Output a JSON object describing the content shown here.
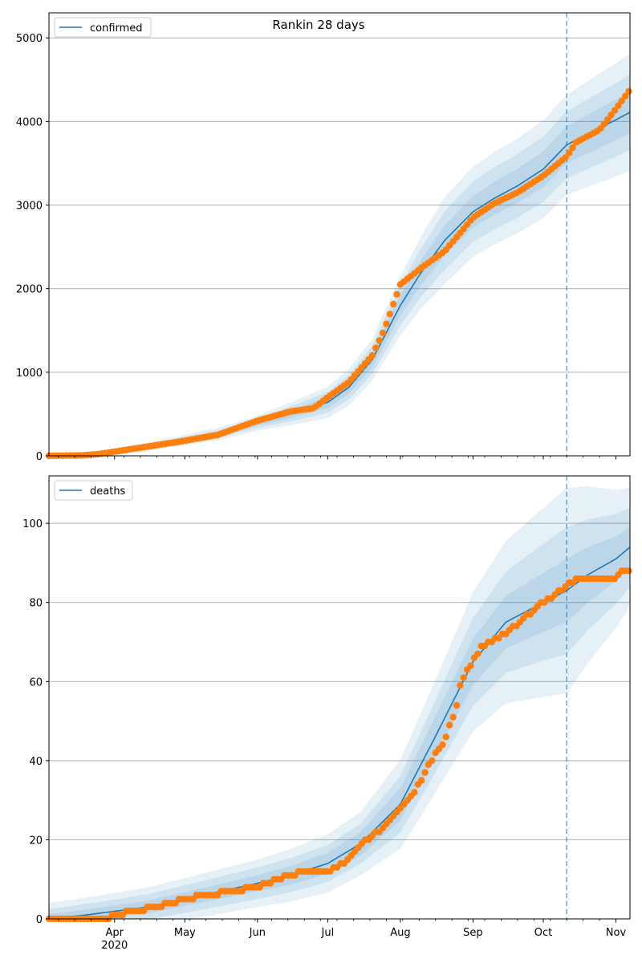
{
  "title": "Rankin 28 days",
  "colors": {
    "line": "#1f77b4",
    "band": "#1f77b4",
    "observed": "#ff7f0e",
    "grid": "#b0b0b0",
    "vline": "#1f77b4"
  },
  "x_axis": {
    "start_date": "2020-03-04",
    "end_date": "2020-11-07",
    "month_labels": [
      "Apr",
      "May",
      "Jun",
      "Jul",
      "Aug",
      "Sep",
      "Oct",
      "Nov"
    ],
    "year_label": "2020"
  },
  "forecast_start_date": "2020-10-11",
  "chart_data": [
    {
      "type": "line",
      "series": [
        {
          "name": "confirmed"
        }
      ],
      "legend_position": "upper-left",
      "grid": "horizontal",
      "ylim": [
        0,
        5300
      ],
      "yticks": [
        0,
        1000,
        2000,
        3000,
        4000,
        5000
      ],
      "ytick_labels": [
        "0",
        "1000",
        "2000",
        "3000",
        "4000",
        "5000"
      ],
      "model_line": [
        [
          "2020-03-04",
          0
        ],
        [
          "2020-03-20",
          10
        ],
        [
          "2020-04-01",
          50
        ],
        [
          "2020-04-15",
          110
        ],
        [
          "2020-05-01",
          190
        ],
        [
          "2020-05-15",
          260
        ],
        [
          "2020-06-01",
          390
        ],
        [
          "2020-06-15",
          500
        ],
        [
          "2020-07-01",
          640
        ],
        [
          "2020-07-10",
          820
        ],
        [
          "2020-07-20",
          1150
        ],
        [
          "2020-07-25",
          1420
        ],
        [
          "2020-08-01",
          1800
        ],
        [
          "2020-08-10",
          2200
        ],
        [
          "2020-08-20",
          2580
        ],
        [
          "2020-09-01",
          2920
        ],
        [
          "2020-09-10",
          3080
        ],
        [
          "2020-09-20",
          3230
        ],
        [
          "2020-10-01",
          3430
        ],
        [
          "2020-10-11",
          3720
        ],
        [
          "2020-10-20",
          3850
        ],
        [
          "2020-11-01",
          4020
        ],
        [
          "2020-11-07",
          4110
        ]
      ],
      "band_half_widths": [
        [
          [
            "2020-03-04",
            10
          ],
          [
            "2020-06-01",
            90
          ],
          [
            "2020-07-20",
            250
          ],
          [
            "2020-08-20",
            520
          ],
          [
            "2020-10-11",
            600
          ],
          [
            "2020-11-07",
            700
          ]
        ],
        [
          [
            "2020-03-04",
            6
          ],
          [
            "2020-06-01",
            55
          ],
          [
            "2020-07-20",
            170
          ],
          [
            "2020-08-20",
            350
          ],
          [
            "2020-10-11",
            400
          ],
          [
            "2020-11-07",
            450
          ]
        ],
        [
          [
            "2020-03-04",
            3
          ],
          [
            "2020-06-01",
            28
          ],
          [
            "2020-07-20",
            90
          ],
          [
            "2020-08-20",
            180
          ],
          [
            "2020-10-11",
            220
          ],
          [
            "2020-11-07",
            250
          ]
        ]
      ],
      "observed_points": [
        [
          "2020-03-04",
          0
        ],
        [
          "2020-03-18",
          5
        ],
        [
          "2020-03-25",
          20
        ],
        [
          "2020-04-01",
          50
        ],
        [
          "2020-04-15",
          110
        ],
        [
          "2020-05-01",
          180
        ],
        [
          "2020-05-15",
          250
        ],
        [
          "2020-06-01",
          420
        ],
        [
          "2020-06-15",
          530
        ],
        [
          "2020-06-25",
          570
        ],
        [
          "2020-07-01",
          700
        ],
        [
          "2020-07-10",
          880
        ],
        [
          "2020-07-20",
          1200
        ],
        [
          "2020-07-25",
          1500
        ],
        [
          "2020-08-01",
          2050
        ],
        [
          "2020-08-10",
          2250
        ],
        [
          "2020-08-20",
          2450
        ],
        [
          "2020-09-01",
          2850
        ],
        [
          "2020-09-10",
          3020
        ],
        [
          "2020-09-20",
          3150
        ],
        [
          "2020-10-01",
          3350
        ],
        [
          "2020-10-11",
          3580
        ],
        [
          "2020-10-15",
          3750
        ],
        [
          "2020-10-25",
          3900
        ],
        [
          "2020-11-01",
          4150
        ],
        [
          "2020-11-07",
          4380
        ]
      ]
    },
    {
      "type": "line",
      "series": [
        {
          "name": "deaths"
        }
      ],
      "legend_position": "upper-left",
      "grid": "horizontal",
      "ylim": [
        0,
        112
      ],
      "yticks": [
        0,
        20,
        40,
        60,
        80,
        100
      ],
      "ytick_labels": [
        "0",
        "20",
        "40",
        "60",
        "80",
        "100"
      ],
      "model_line": [
        [
          "2020-03-04",
          0
        ],
        [
          "2020-03-20",
          1
        ],
        [
          "2020-04-15",
          3
        ],
        [
          "2020-05-01",
          5
        ],
        [
          "2020-06-01",
          9
        ],
        [
          "2020-06-15",
          11
        ],
        [
          "2020-07-01",
          14
        ],
        [
          "2020-07-15",
          19
        ],
        [
          "2020-08-01",
          29
        ],
        [
          "2020-08-15",
          45
        ],
        [
          "2020-09-01",
          65
        ],
        [
          "2020-09-15",
          75
        ],
        [
          "2020-10-01",
          80
        ],
        [
          "2020-10-11",
          83
        ],
        [
          "2020-10-20",
          87
        ],
        [
          "2020-11-01",
          91
        ],
        [
          "2020-11-07",
          94
        ]
      ],
      "band_half_widths": [
        [
          [
            "2020-03-04",
            4
          ],
          [
            "2020-06-01",
            6
          ],
          [
            "2020-07-15",
            8
          ],
          [
            "2020-08-15",
            14
          ],
          [
            "2020-10-11",
            26
          ],
          [
            "2020-11-07",
            15
          ]
        ],
        [
          [
            "2020-03-04",
            2.5
          ],
          [
            "2020-06-01",
            4
          ],
          [
            "2020-07-15",
            5
          ],
          [
            "2020-08-15",
            9
          ],
          [
            "2020-10-11",
            16
          ],
          [
            "2020-11-07",
            10
          ]
        ],
        [
          [
            "2020-03-04",
            1.2
          ],
          [
            "2020-06-01",
            2
          ],
          [
            "2020-07-15",
            3
          ],
          [
            "2020-08-15",
            5
          ],
          [
            "2020-10-11",
            8
          ],
          [
            "2020-11-07",
            5
          ]
        ]
      ],
      "observed_points": [
        [
          "2020-03-04",
          0
        ],
        [
          "2020-03-28",
          0
        ],
        [
          "2020-04-01",
          1
        ],
        [
          "2020-04-10",
          2
        ],
        [
          "2020-04-25",
          4
        ],
        [
          "2020-05-01",
          5
        ],
        [
          "2020-05-10",
          6
        ],
        [
          "2020-06-01",
          8
        ],
        [
          "2020-06-10",
          10
        ],
        [
          "2020-06-20",
          12
        ],
        [
          "2020-07-01",
          12
        ],
        [
          "2020-07-10",
          15
        ],
        [
          "2020-07-15",
          19
        ],
        [
          "2020-07-25",
          23
        ],
        [
          "2020-08-01",
          28
        ],
        [
          "2020-08-05",
          30
        ],
        [
          "2020-08-10",
          35
        ],
        [
          "2020-08-15",
          41
        ],
        [
          "2020-08-20",
          45
        ],
        [
          "2020-08-25",
          54
        ],
        [
          "2020-08-27",
          60
        ],
        [
          "2020-09-01",
          65
        ],
        [
          "2020-09-05",
          69
        ],
        [
          "2020-09-15",
          72
        ],
        [
          "2020-09-25",
          77
        ],
        [
          "2020-10-01",
          80
        ],
        [
          "2020-10-11",
          84
        ],
        [
          "2020-10-15",
          86
        ],
        [
          "2020-11-01",
          86
        ],
        [
          "2020-11-03",
          88
        ],
        [
          "2020-11-07",
          88
        ]
      ]
    }
  ]
}
